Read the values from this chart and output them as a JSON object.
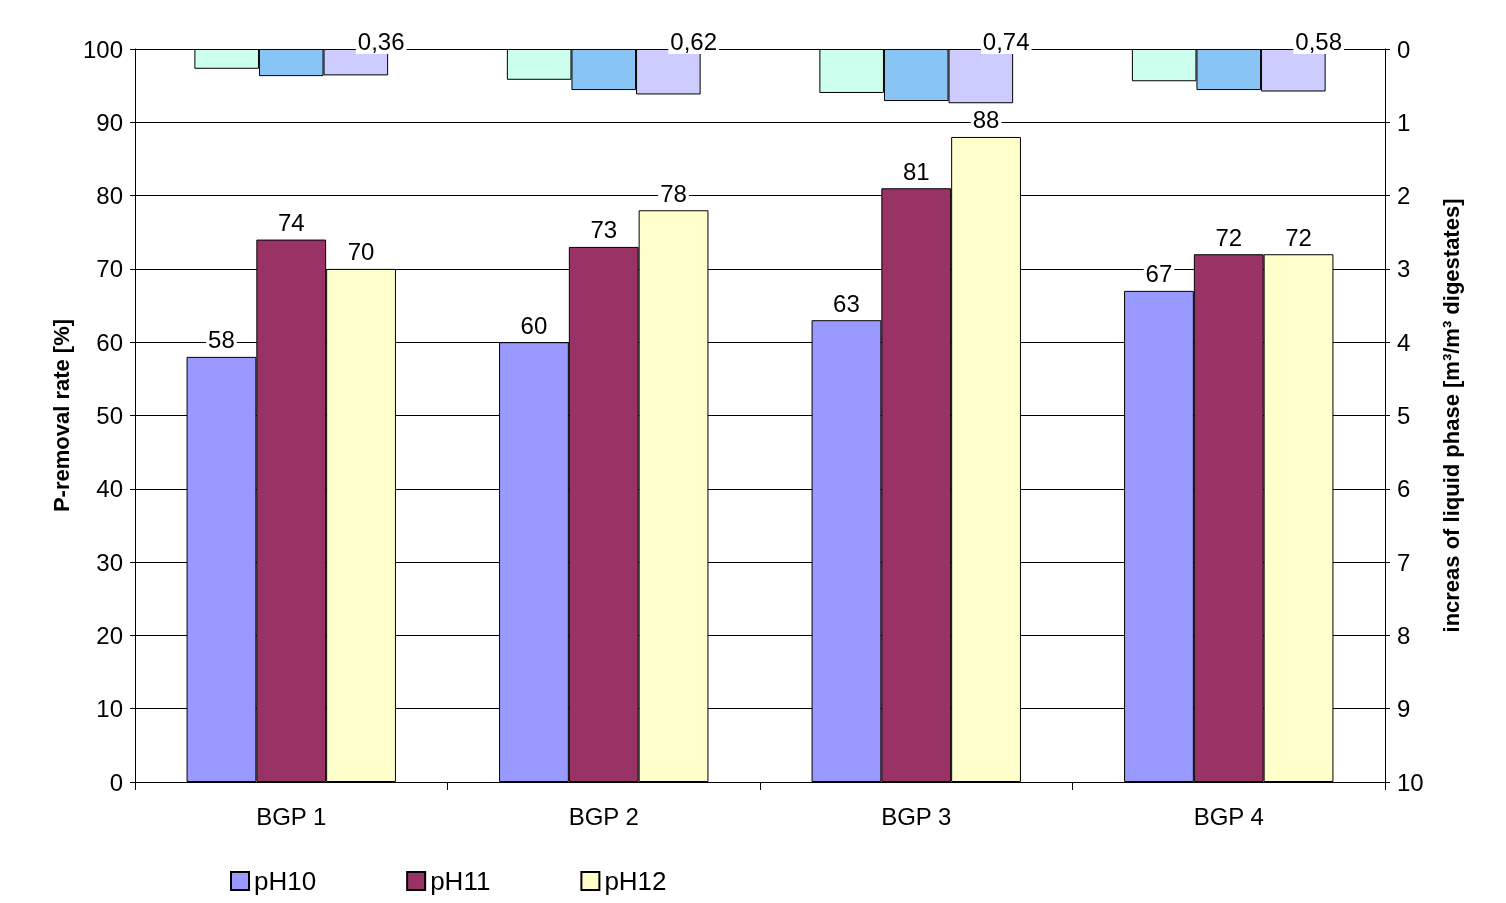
{
  "chart_data": {
    "type": "bar",
    "categories": [
      "BGP 1",
      "BGP 2",
      "BGP 3",
      "BGP 4"
    ],
    "ylabel": "P-removal rate [%]",
    "y2label": "increas of liquid phase [m³/m³ digestates]",
    "ylim": [
      0,
      100
    ],
    "yticks": [
      0,
      10,
      20,
      30,
      40,
      50,
      60,
      70,
      80,
      90,
      100
    ],
    "y2lim": [
      10,
      0
    ],
    "y2ticks": [
      0,
      1,
      2,
      3,
      4,
      5,
      6,
      7,
      8,
      9,
      10
    ],
    "grid": "y",
    "legend": "bottom left",
    "series": [
      {
        "name": "pH10",
        "color": "#9999ff",
        "values": [
          58,
          60,
          63,
          67
        ],
        "value_labels": [
          "58",
          "60",
          "63",
          "67"
        ]
      },
      {
        "name": "pH11",
        "color": "#993366",
        "values": [
          74,
          73,
          81,
          72
        ],
        "value_labels": [
          "74",
          "73",
          "81",
          "72"
        ]
      },
      {
        "name": "pH12",
        "color": "#ffffcc",
        "values": [
          70,
          78,
          88,
          72
        ],
        "value_labels": [
          "70",
          "78",
          "88",
          "72"
        ]
      },
      {
        "color": "#ccffee",
        "axis": "y2",
        "values": [
          0.27,
          0.42,
          0.6,
          0.44
        ]
      },
      {
        "color": "#88c4f4",
        "axis": "y2",
        "values": [
          0.37,
          0.56,
          0.71,
          0.56
        ]
      },
      {
        "color": "#ccccff",
        "axis": "y2",
        "values": [
          0.36,
          0.62,
          0.74,
          0.58
        ],
        "value_labels": [
          "0,36",
          "0,62",
          "0,74",
          "0,58"
        ]
      }
    ]
  }
}
